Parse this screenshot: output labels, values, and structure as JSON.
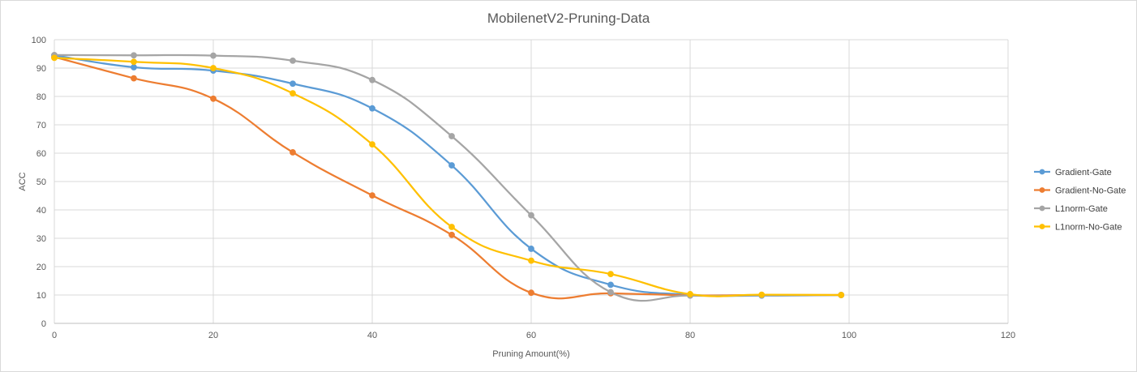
{
  "chart_data": {
    "type": "line",
    "title": "MobilenetV2-Pruning-Data",
    "xlabel": "Pruning Amount(%)",
    "ylabel": "ACC",
    "xlim": [
      0,
      120
    ],
    "ylim": [
      0,
      100
    ],
    "xticks": [
      0,
      20,
      40,
      60,
      80,
      100,
      120
    ],
    "yticks": [
      0,
      10,
      20,
      30,
      40,
      50,
      60,
      70,
      80,
      90,
      100
    ],
    "grid": true,
    "smooth": true,
    "legend_position": "right",
    "series": [
      {
        "name": "Gradient-Gate",
        "color": "#5B9BD5",
        "x": [
          0,
          10,
          20,
          30,
          40,
          50,
          60,
          70,
          80,
          89,
          99
        ],
        "y": [
          94.5,
          90.3,
          89.1,
          84.5,
          75.8,
          55.7,
          26.3,
          13.6,
          10.1,
          9.8,
          10.0
        ]
      },
      {
        "name": "Gradient-No-Gate",
        "color": "#ED7D31",
        "x": [
          0,
          10,
          20,
          30,
          40,
          50,
          60,
          70,
          80,
          89,
          99
        ],
        "y": [
          93.9,
          86.4,
          79.2,
          60.3,
          45.1,
          31.2,
          10.8,
          10.6,
          9.9,
          10.0,
          10.0
        ]
      },
      {
        "name": "L1norm-Gate",
        "color": "#A5A5A5",
        "x": [
          0,
          10,
          20,
          30,
          40,
          50,
          60,
          70,
          80,
          89,
          99
        ],
        "y": [
          94.6,
          94.5,
          94.4,
          92.6,
          85.8,
          66.0,
          38.1,
          11.0,
          9.8,
          9.9,
          10.0
        ]
      },
      {
        "name": "L1norm-No-Gate",
        "color": "#FFC000",
        "x": [
          0,
          10,
          20,
          30,
          40,
          50,
          60,
          70,
          80,
          89,
          99
        ],
        "y": [
          93.6,
          92.2,
          90.0,
          81.1,
          63.1,
          34.0,
          22.1,
          17.4,
          10.3,
          10.1,
          10.0
        ]
      }
    ]
  }
}
